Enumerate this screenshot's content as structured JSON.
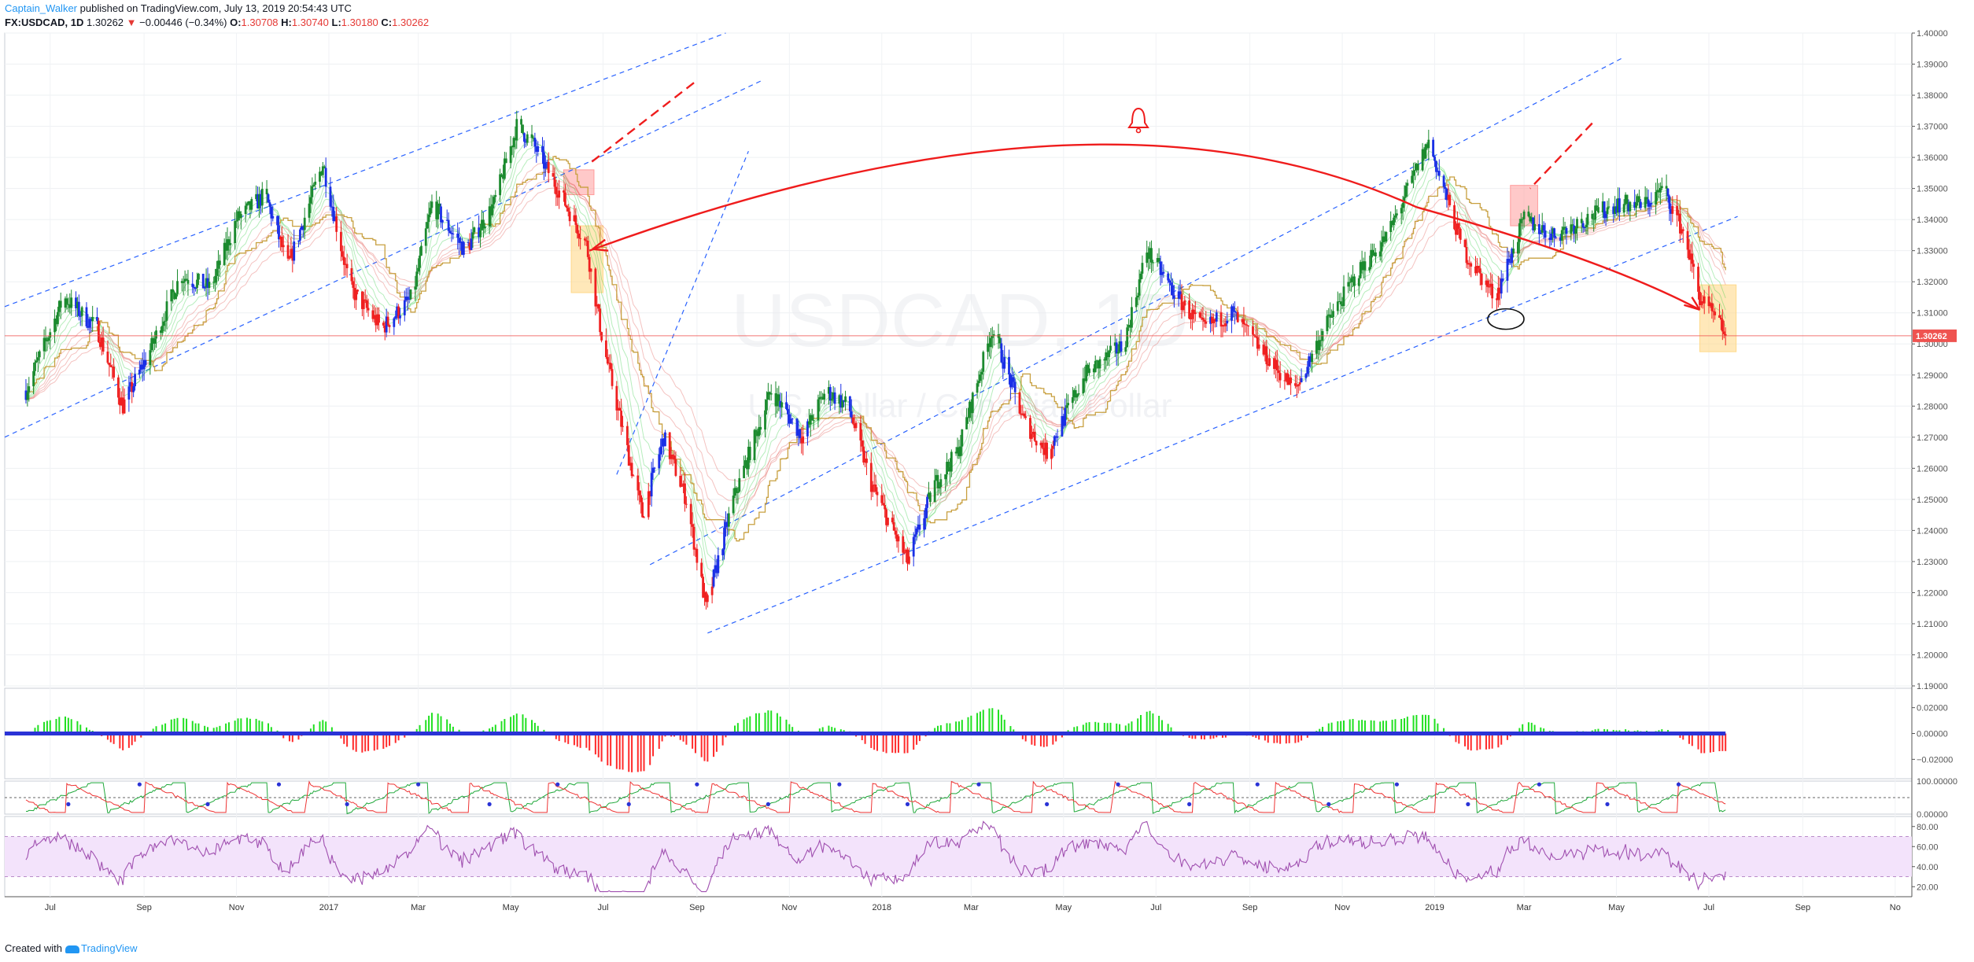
{
  "header": {
    "author": "Captain_Walker",
    "published_text": "published on TradingView.com, July 13, 2019 20:54:43 UTC",
    "symbol": "FX:USDCAD, 1D",
    "last": "1.30262",
    "change_text": "−0.00446 (−0.34%)",
    "open_label": "O:",
    "open": "1.30708",
    "high_label": "H:",
    "high": "1.30740",
    "low_label": "L:",
    "low": "1.30180",
    "close_label": "C:",
    "close": "1.30262"
  },
  "watermark": {
    "symbol": "USDCAD, 1D",
    "description": "U.S. Dollar / Canadian Dollar"
  },
  "footer": {
    "created_with": "Created with",
    "brand": "TradingView"
  },
  "colors": {
    "bull_candle": "#1b8a2e",
    "bear_candle": "#ef2020",
    "neutral_candle": "#1a2fe6",
    "ribbon_bull": "#2ecc40",
    "ribbon_bear": "#e0504a",
    "baseline": "#c8a040",
    "trendline": "#2962ff",
    "arrow": "#ef1c1c",
    "price_line": "#ef5350",
    "highlight_orange": "#ffd98a",
    "highlight_red": "#ff9c9c",
    "osc_up": "#20e020",
    "osc_down": "#ff2a2a",
    "rsi_line": "#a050b0",
    "rsi_band": "#f3e3fb"
  },
  "chart_data": [
    {
      "type": "candlestick",
      "panel": "price",
      "symbol": "FX:USDCAD",
      "interval": "1D",
      "xlabel": "",
      "ylabel": "",
      "x_ticks": [
        "Jul",
        "Sep",
        "Nov",
        "2017",
        "Mar",
        "May",
        "Jul",
        "Sep",
        "Nov",
        "2018",
        "Mar",
        "May",
        "Jul",
        "Sep",
        "Nov",
        "2019",
        "Mar",
        "May",
        "Jul",
        "Sep",
        "No"
      ],
      "y_ticks": [
        "1.40000",
        "1.39000",
        "1.38000",
        "1.37000",
        "1.36000",
        "1.35000",
        "1.34000",
        "1.33000",
        "1.32000",
        "1.31000",
        "1.30000",
        "1.29000",
        "1.28000",
        "1.27000",
        "1.26000",
        "1.25000",
        "1.24000",
        "1.23000",
        "1.22000",
        "1.21000",
        "1.20000",
        "1.19000"
      ],
      "ylim": [
        1.19,
        1.4
      ],
      "last_price_label": "1.30262",
      "last_price": 1.30262,
      "anchors": [
        {
          "t": "2016-06-15",
          "v": 1.285
        },
        {
          "t": "2016-07-10",
          "v": 1.315
        },
        {
          "t": "2016-08-01",
          "v": 1.305
        },
        {
          "t": "2016-08-18",
          "v": 1.28
        },
        {
          "t": "2016-09-05",
          "v": 1.298
        },
        {
          "t": "2016-09-25",
          "v": 1.322
        },
        {
          "t": "2016-10-15",
          "v": 1.318
        },
        {
          "t": "2016-11-01",
          "v": 1.34
        },
        {
          "t": "2016-11-20",
          "v": 1.348
        },
        {
          "t": "2016-12-05",
          "v": 1.325
        },
        {
          "t": "2016-12-28",
          "v": 1.358
        },
        {
          "t": "2017-01-15",
          "v": 1.318
        },
        {
          "t": "2017-02-05",
          "v": 1.305
        },
        {
          "t": "2017-02-25",
          "v": 1.315
        },
        {
          "t": "2017-03-10",
          "v": 1.345
        },
        {
          "t": "2017-04-01",
          "v": 1.33
        },
        {
          "t": "2017-04-20",
          "v": 1.345
        },
        {
          "t": "2017-05-05",
          "v": 1.37
        },
        {
          "t": "2017-05-15",
          "v": 1.365
        },
        {
          "t": "2017-06-01",
          "v": 1.35
        },
        {
          "t": "2017-06-20",
          "v": 1.332
        },
        {
          "t": "2017-07-01",
          "v": 1.3
        },
        {
          "t": "2017-07-15",
          "v": 1.27
        },
        {
          "t": "2017-07-27",
          "v": 1.245
        },
        {
          "t": "2017-08-10",
          "v": 1.27
        },
        {
          "t": "2017-08-25",
          "v": 1.25
        },
        {
          "t": "2017-09-07",
          "v": 1.215
        },
        {
          "t": "2017-09-25",
          "v": 1.25
        },
        {
          "t": "2017-10-20",
          "v": 1.285
        },
        {
          "t": "2017-11-10",
          "v": 1.27
        },
        {
          "t": "2017-11-25",
          "v": 1.285
        },
        {
          "t": "2017-12-10",
          "v": 1.28
        },
        {
          "t": "2017-12-25",
          "v": 1.255
        },
        {
          "t": "2018-01-18",
          "v": 1.23
        },
        {
          "t": "2018-02-05",
          "v": 1.255
        },
        {
          "t": "2018-02-20",
          "v": 1.265
        },
        {
          "t": "2018-03-15",
          "v": 1.305
        },
        {
          "t": "2018-04-05",
          "v": 1.275
        },
        {
          "t": "2018-04-20",
          "v": 1.265
        },
        {
          "t": "2018-05-15",
          "v": 1.29
        },
        {
          "t": "2018-06-10",
          "v": 1.3
        },
        {
          "t": "2018-06-25",
          "v": 1.33
        },
        {
          "t": "2018-07-15",
          "v": 1.315
        },
        {
          "t": "2018-08-01",
          "v": 1.305
        },
        {
          "t": "2018-08-20",
          "v": 1.31
        },
        {
          "t": "2018-09-10",
          "v": 1.297
        },
        {
          "t": "2018-10-01",
          "v": 1.285
        },
        {
          "t": "2018-10-20",
          "v": 1.305
        },
        {
          "t": "2018-11-10",
          "v": 1.322
        },
        {
          "t": "2018-12-01",
          "v": 1.335
        },
        {
          "t": "2018-12-28",
          "v": 1.365
        },
        {
          "t": "2019-01-20",
          "v": 1.33
        },
        {
          "t": "2019-02-10",
          "v": 1.315
        },
        {
          "t": "2019-03-01",
          "v": 1.34
        },
        {
          "t": "2019-03-20",
          "v": 1.335
        },
        {
          "t": "2019-04-10",
          "v": 1.34
        },
        {
          "t": "2019-05-01",
          "v": 1.345
        },
        {
          "t": "2019-05-20",
          "v": 1.345
        },
        {
          "t": "2019-06-01",
          "v": 1.35
        },
        {
          "t": "2019-06-15",
          "v": 1.335
        },
        {
          "t": "2019-06-25",
          "v": 1.315
        },
        {
          "t": "2019-07-13",
          "v": 1.3026
        }
      ]
    },
    {
      "type": "area",
      "panel": "momentum oscillator",
      "y_ticks": [
        "0.02000",
        "0.00000",
        "−0.02000"
      ],
      "ylim": [
        -0.035,
        0.035
      ]
    },
    {
      "type": "line",
      "panel": "stochastic",
      "y_ticks": [
        "100.00000",
        "0.00000"
      ],
      "ylim": [
        0,
        100
      ]
    },
    {
      "type": "line",
      "panel": "rsi",
      "y_ticks": [
        "80.00",
        "60.00",
        "40.00",
        "20.00"
      ],
      "ylim": [
        10,
        90
      ],
      "band": [
        30,
        70
      ]
    }
  ]
}
